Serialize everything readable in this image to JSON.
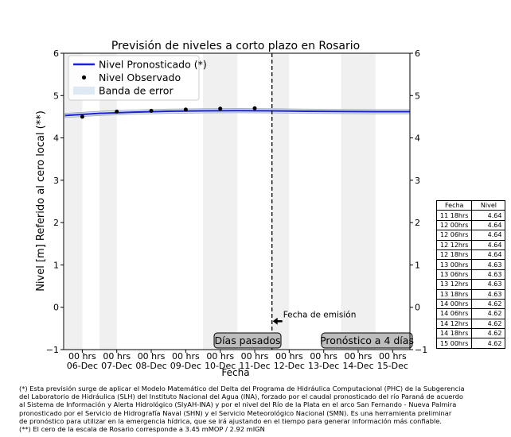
{
  "chart_data": {
    "type": "line",
    "title": "Previsión de niveles a corto plazo en Rosario",
    "xlabel": "Fecha",
    "ylabel": "Nivel [m] Referido al cero local (**)",
    "ylim": [
      -1,
      6
    ],
    "y_ticks": [
      "6",
      "5",
      "4",
      "3",
      "2",
      "1",
      "0",
      "−1"
    ],
    "xlim_days": [
      5.46,
      15.5
    ],
    "x_ticks": [
      {
        "day": 6,
        "label_top": "00 hrs",
        "label_bottom": "06-Dec"
      },
      {
        "day": 7,
        "label_top": "00 hrs",
        "label_bottom": "07-Dec"
      },
      {
        "day": 8,
        "label_top": "00 hrs",
        "label_bottom": "08-Dec"
      },
      {
        "day": 9,
        "label_top": "00 hrs",
        "label_bottom": "09-Dec"
      },
      {
        "day": 10,
        "label_top": "00 hrs",
        "label_bottom": "10-Dec"
      },
      {
        "day": 11,
        "label_top": "00 hrs",
        "label_bottom": "11-Dec"
      },
      {
        "day": 12,
        "label_top": "00 hrs",
        "label_bottom": "12-Dec"
      },
      {
        "day": 13,
        "label_top": "00 hrs",
        "label_bottom": "13-Dec"
      },
      {
        "day": 14,
        "label_top": "00 hrs",
        "label_bottom": "14-Dec"
      },
      {
        "day": 15,
        "label_top": "00 hrs",
        "label_bottom": "15-Dec"
      }
    ],
    "shaded_bands_days": [
      [
        5.5,
        6.0
      ],
      [
        6.5,
        7.0
      ],
      [
        9.5,
        10.5
      ],
      [
        11.5,
        12.0
      ],
      [
        13.5,
        14.5
      ]
    ],
    "legend": {
      "placement": "top-left",
      "forecast_label": "Nivel Pronosticado (*)",
      "observed_label": "Nivel Observado",
      "band_label": "Banda de error"
    },
    "forecast": {
      "name": "Nivel Pronosticado (*)",
      "color": "#1f1fd6",
      "x_days": [
        5.5,
        6.5,
        7.5,
        8.5,
        9.5,
        10.5,
        11.5,
        12.5,
        13.5,
        14.5,
        15.5
      ],
      "y": [
        4.53,
        4.58,
        4.61,
        4.63,
        4.64,
        4.645,
        4.64,
        4.63,
        4.625,
        4.62,
        4.62
      ],
      "band_halfwidth": 0.05
    },
    "observed": {
      "name": "Nivel Observado",
      "x_days": [
        6.0,
        7.0,
        8.0,
        9.0,
        10.0,
        11.0
      ],
      "y": [
        4.5,
        4.62,
        4.64,
        4.67,
        4.69,
        4.7
      ]
    },
    "emission_day": 11.5,
    "emission_label": "Fecha de emisión",
    "past_label": "Días pasados",
    "forecast_box_label": "Pronóstico a 4 días"
  },
  "table": {
    "headers": [
      "Fecha",
      "Nivel"
    ],
    "rows": [
      [
        "11 18hrs",
        "4.64"
      ],
      [
        "12 00hrs",
        "4.64"
      ],
      [
        "12 06hrs",
        "4.64"
      ],
      [
        "12 12hrs",
        "4.64"
      ],
      [
        "12 18hrs",
        "4.64"
      ],
      [
        "13 00hrs",
        "4.63"
      ],
      [
        "13 06hrs",
        "4.63"
      ],
      [
        "13 12hrs",
        "4.63"
      ],
      [
        "13 18hrs",
        "4.63"
      ],
      [
        "14 00hrs",
        "4.62"
      ],
      [
        "14 06hrs",
        "4.62"
      ],
      [
        "14 12hrs",
        "4.62"
      ],
      [
        "14 18hrs",
        "4.62"
      ],
      [
        "15 00hrs",
        "4.62"
      ]
    ]
  },
  "footnote": "(*) Esta previsión surge de aplicar el Modelo Matemático del Delta del Programa de Hidráulica Computacional (PHC) de la Subgerencia\ndel Laboratorio de Hidráulica (SLH) del Instituto Nacional del Agua (INA), forzado por el caudal pronosticado del río Paraná de acuerdo\nal Sistema de Información y Alerta Hidrológico (SIyAH-INA) y por el nivel del Río de la Plata en el arco San Fernando - Nueva Palmira\npronosticado por el Servicio de Hidrografía Naval (SHN) y el Servicio Meteorológico Nacional (SMN). Es una herramienta preliminar\nde pronóstico para utilizar en la emergencia hídrica, que se irá ajustando en el tiempo para generar información más confiable.\n(**) El cero de la escala de Rosario corresponde a 3.45 mMOP / 2.92 mIGN"
}
